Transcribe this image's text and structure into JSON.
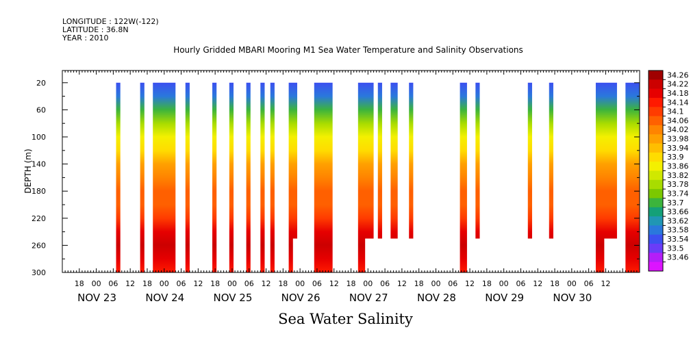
{
  "header": {
    "longitude": "LONGITUDE : 122W(-122)",
    "latitude": "LATITUDE : 36.8N",
    "year": "YEAR : 2010"
  },
  "chart_data": {
    "type": "heatmap",
    "title": "Hourly Gridded MBARI Mooring M1 Sea Water Temperature and Salinity Observations",
    "xlabel": "Sea Water Salinity",
    "ylabel": "DEPTH (m)",
    "ylim": [
      300,
      20
    ],
    "yticks": [
      20,
      60,
      100,
      140,
      180,
      220,
      260,
      300
    ],
    "xlim_hours": [
      0,
      204
    ],
    "x_tick_labels": [
      "18",
      "00",
      "06",
      "12",
      "18",
      "00",
      "06",
      "12",
      "18",
      "00",
      "06",
      "12",
      "18",
      "00",
      "06",
      "12",
      "18",
      "00",
      "06",
      "12",
      "18",
      "00",
      "06",
      "12",
      "18",
      "00",
      "06",
      "12",
      "18",
      "00",
      "06",
      "12"
    ],
    "x_date_labels": [
      "NOV 23",
      "NOV 24",
      "NOV 25",
      "NOV 26",
      "NOV 27",
      "NOV 28",
      "NOV 29",
      "NOV 30"
    ],
    "colorbar": {
      "levels": [
        34.26,
        34.22,
        34.18,
        34.14,
        34.1,
        34.06,
        34.02,
        33.98,
        33.94,
        33.9,
        33.86,
        33.82,
        33.78,
        33.74,
        33.7,
        33.66,
        33.62,
        33.58,
        33.54,
        33.5,
        33.46
      ],
      "colors": [
        "#a00000",
        "#cc0000",
        "#e60000",
        "#ff1a00",
        "#ff3c00",
        "#ff6000",
        "#ff8400",
        "#ffa000",
        "#ffbe00",
        "#ffdc00",
        "#f4f000",
        "#d0e800",
        "#a8dc00",
        "#7cc800",
        "#3cb43c",
        "#14a078",
        "#2096b4",
        "#2a78dc",
        "#3c50f0",
        "#6a3cf8",
        "#b41ef8",
        "#dc14ff"
      ]
    },
    "x_axis_origin": "NOV 23 12:00",
    "observation_segments": [
      {
        "start_hour": 19,
        "end_hour": 20.5,
        "max_depth": 300
      },
      {
        "start_hour": 27.5,
        "end_hour": 29,
        "max_depth": 300
      },
      {
        "start_hour": 32,
        "end_hour": 40,
        "max_depth": 300
      },
      {
        "start_hour": 43.5,
        "end_hour": 45,
        "max_depth": 300
      },
      {
        "start_hour": 53,
        "end_hour": 54.5,
        "max_depth": 300
      },
      {
        "start_hour": 59,
        "end_hour": 60.5,
        "max_depth": 300
      },
      {
        "start_hour": 65,
        "end_hour": 66.5,
        "max_depth": 300
      },
      {
        "start_hour": 70,
        "end_hour": 71.5,
        "max_depth": 300
      },
      {
        "start_hour": 73.5,
        "end_hour": 75,
        "max_depth": 300
      },
      {
        "start_hour": 80,
        "end_hour": 83,
        "max_depth": 250,
        "partial_max_depth": 300,
        "partial_end_hour": 81.5
      },
      {
        "start_hour": 89,
        "end_hour": 95.5,
        "max_depth": 300
      },
      {
        "start_hour": 104.5,
        "end_hour": 110,
        "max_depth": 250,
        "partial_max_depth": 300,
        "partial_end_hour": 107
      },
      {
        "start_hour": 111.5,
        "end_hour": 113,
        "max_depth": 250
      },
      {
        "start_hour": 116,
        "end_hour": 118.5,
        "max_depth": 250
      },
      {
        "start_hour": 122.5,
        "end_hour": 124,
        "max_depth": 250
      },
      {
        "start_hour": 140.5,
        "end_hour": 143,
        "max_depth": 300
      },
      {
        "start_hour": 146,
        "end_hour": 147.5,
        "max_depth": 250
      },
      {
        "start_hour": 164.5,
        "end_hour": 166,
        "max_depth": 250
      },
      {
        "start_hour": 172,
        "end_hour": 173.5,
        "max_depth": 250
      },
      {
        "start_hour": 188.5,
        "end_hour": 196,
        "max_depth": 250,
        "partial_max_depth": 300,
        "partial_end_hour": 191.5
      },
      {
        "start_hour": 199,
        "end_hour": 204,
        "max_depth": 300
      }
    ],
    "salinity_profile": [
      {
        "depth": 20,
        "value": 33.55
      },
      {
        "depth": 40,
        "value": 33.6
      },
      {
        "depth": 60,
        "value": 33.72
      },
      {
        "depth": 80,
        "value": 33.8
      },
      {
        "depth": 100,
        "value": 33.86
      },
      {
        "depth": 120,
        "value": 33.92
      },
      {
        "depth": 140,
        "value": 33.98
      },
      {
        "depth": 160,
        "value": 34.03
      },
      {
        "depth": 180,
        "value": 34.06
      },
      {
        "depth": 200,
        "value": 34.09
      },
      {
        "depth": 220,
        "value": 34.13
      },
      {
        "depth": 240,
        "value": 34.18
      },
      {
        "depth": 260,
        "value": 34.22
      },
      {
        "depth": 280,
        "value": 34.19
      },
      {
        "depth": 300,
        "value": 34.16
      }
    ]
  }
}
